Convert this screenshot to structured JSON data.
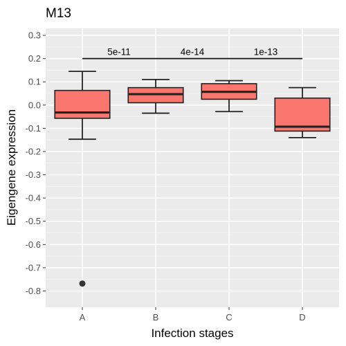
{
  "chart_data": {
    "type": "box",
    "title": "M13",
    "xlabel": "Infection stages",
    "ylabel": "Eigengene expression",
    "categories": [
      "A",
      "B",
      "C",
      "D"
    ],
    "ylim": [
      -0.87,
      0.33
    ],
    "yticks": [
      0.3,
      0.2,
      0.1,
      0.0,
      -0.1,
      -0.2,
      -0.3,
      -0.4,
      -0.5,
      -0.6,
      -0.7,
      -0.8
    ],
    "ytick_labels": [
      "0.3",
      "0.2",
      "0.1",
      "0.0",
      "-0.1",
      "-0.2",
      "-0.3",
      "-0.4",
      "-0.5",
      "-0.6",
      "-0.7",
      "-0.8"
    ],
    "grid": true,
    "fill_color": "#F8766D",
    "panel_color": "#EBEBEB",
    "boxes": [
      {
        "category": "A",
        "whisker_low": -0.147,
        "q1": -0.057,
        "median": -0.032,
        "q3": 0.063,
        "whisker_high": 0.145,
        "outliers": [
          -0.768
        ]
      },
      {
        "category": "B",
        "whisker_low": -0.035,
        "q1": 0.01,
        "median": 0.047,
        "q3": 0.075,
        "whisker_high": 0.11,
        "outliers": []
      },
      {
        "category": "C",
        "whisker_low": -0.028,
        "q1": 0.025,
        "median": 0.057,
        "q3": 0.092,
        "whisker_high": 0.105,
        "outliers": []
      },
      {
        "category": "D",
        "whisker_low": -0.14,
        "q1": -0.112,
        "median": -0.093,
        "q3": 0.03,
        "whisker_high": 0.075,
        "outliers": []
      }
    ],
    "comparisons": [
      {
        "from": "A",
        "to": "B",
        "label": "5e-11",
        "y": 0.2
      },
      {
        "from": "B",
        "to": "C",
        "label": "4e-14",
        "y": 0.2
      },
      {
        "from": "C",
        "to": "D",
        "label": "1e-13",
        "y": 0.2
      }
    ]
  }
}
